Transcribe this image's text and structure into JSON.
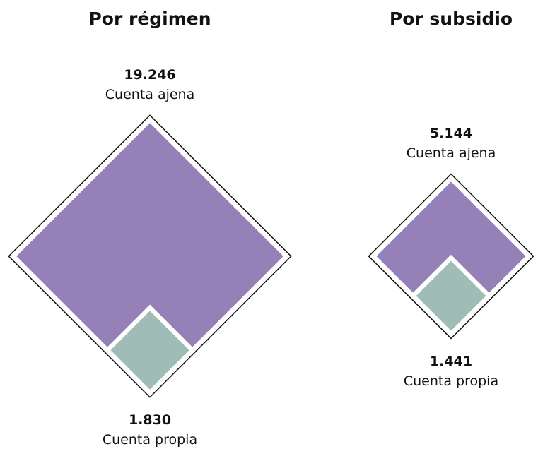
{
  "chart_data": [
    {
      "type": "diamond",
      "title": "Por régimen",
      "categories": [
        "Cuenta ajena",
        "Cuenta propia"
      ],
      "values": [
        19246,
        1830
      ],
      "value_labels": [
        "19.246",
        "1.830"
      ],
      "colors": [
        "#9580b8",
        "#9fbcb6"
      ]
    },
    {
      "type": "diamond",
      "title": "Por subsidio",
      "categories": [
        "Cuenta ajena",
        "Cuenta propia"
      ],
      "values": [
        5144,
        1441
      ],
      "value_labels": [
        "5.144",
        "1.441"
      ],
      "colors": [
        "#9580b8",
        "#9fbcb6"
      ]
    }
  ]
}
